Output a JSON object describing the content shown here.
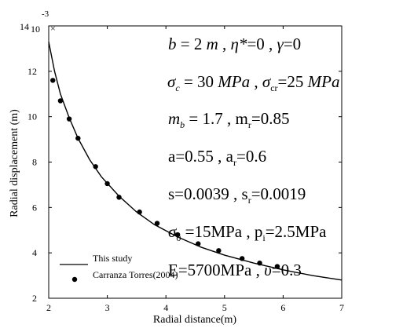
{
  "chart_data": {
    "type": "line",
    "xlabel": "Radial distance(m)",
    "ylabel": "Radial displacement (m)",
    "xlim": [
      2,
      7
    ],
    "ylim": [
      2,
      14
    ],
    "y_scale_label": "10",
    "y_scale_exponent": "-3",
    "x_ticks": [
      "2",
      "3",
      "4",
      "5",
      "6",
      "7"
    ],
    "y_ticks": [
      "2",
      "4",
      "6",
      "8",
      "10",
      "12",
      "14"
    ],
    "legend_position": "bottom-left",
    "series": [
      {
        "name": "This study",
        "style": "line",
        "color": "#000000",
        "x": [
          2.0,
          2.1,
          2.2,
          2.35,
          2.5,
          2.7,
          2.9,
          3.2,
          3.5,
          3.8,
          4.2,
          4.6,
          5.0,
          5.5,
          6.0,
          6.5,
          7.0
        ],
        "y": [
          13.3,
          12.0,
          11.0,
          9.95,
          9.05,
          8.1,
          7.35,
          6.5,
          5.8,
          5.25,
          4.7,
          4.25,
          3.9,
          3.55,
          3.25,
          3.0,
          2.8
        ]
      },
      {
        "name": "Carranza Torres(2004)",
        "style": "markers",
        "color": "#000000",
        "x": [
          2.07,
          2.2,
          2.35,
          2.5,
          2.8,
          3.0,
          3.2,
          3.55,
          3.85,
          4.2,
          4.55,
          4.9,
          5.3,
          5.6,
          5.9
        ],
        "y": [
          11.6,
          10.7,
          9.9,
          9.05,
          7.8,
          7.05,
          6.45,
          5.8,
          5.3,
          4.8,
          4.4,
          4.1,
          3.75,
          3.55,
          3.4
        ]
      }
    ]
  },
  "annotations": {
    "line1": {
      "b": "b",
      "b_val": " = 2 ",
      "b_unit": "m",
      "sep1": "   ,  ",
      "eta": "η*",
      "eta_val": "=0  ,  ",
      "gamma": "γ",
      "gamma_val": "=0"
    },
    "line2": {
      "sigma1": "σ",
      "sub_c": "c",
      "val_c": " = 30 ",
      "unit1": "MPa",
      "sep": " ,  ",
      "sigma2": "σ",
      "sub_cr": "cr",
      "val_cr": "=25 ",
      "unit2": "MPa"
    },
    "line3": {
      "m": "m",
      "sub_b": "b",
      "val_b": " = 1.7  ,  m",
      "sub_r": "r",
      "val_r": "=0.85"
    },
    "line4": {
      "a_part": "a=0.55  ,  a",
      "sub_r": "r",
      "val_r": "=0.6"
    },
    "line5": {
      "s_part": "s=0.0039 ,  s",
      "sub_r": "r",
      "val_r": "=0.0019"
    },
    "line6": {
      "sigma": "σ",
      "sub_0": "0",
      "val": " =15MPa  ,  p",
      "sub_i": "i",
      "val_i": "=2.5MPa"
    },
    "line7": {
      "e_part": "E=5700MPa  ,  ",
      "nu": "υ",
      "val_nu": "=0.3"
    }
  }
}
